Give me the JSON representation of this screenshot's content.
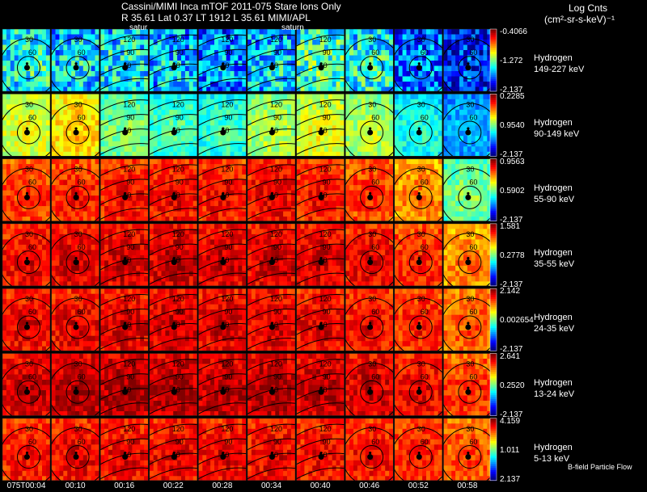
{
  "header": {
    "title": "Cassini/MIMI Inca mTOF  2011-075   Stare   Ions Only",
    "subtitle": "R        35.61  Lat 0.37 LT 1912 L         35.61   MIMI/APL",
    "log_label": "Log Cnts",
    "units": "(cm²-sr-s-keV)⁻¹",
    "saturn_labels": [
      "satur",
      "saturn"
    ]
  },
  "footer_note": "B-field Particle Flow",
  "chart_data": {
    "type": "heatmap",
    "title": "Cassini/MIMI Inca mTOF  2011-075   Stare   Ions Only",
    "time_ticks": [
      "075T00:04",
      "00:10",
      "00:16",
      "00:22",
      "00:28",
      "00:34",
      "00:40",
      "00:46",
      "00:52",
      "00:58"
    ],
    "contour_levels": [
      "30",
      "60",
      "90",
      "120",
      "150"
    ],
    "rows": [
      {
        "species": "Hydrogen",
        "energy": "149-227 keV",
        "cmax": "-0.4066",
        "cmid": "-1.272",
        "cmin": "-2.137",
        "intensity": [
          0.35,
          0.3,
          0.33,
          0.28,
          0.22,
          0.3,
          0.4,
          0.35,
          0.2,
          0.1
        ]
      },
      {
        "species": "Hydrogen",
        "energy": "90-149 keV",
        "cmax": "0.2285",
        "cmid": "0.9540",
        "cmin": "-2.137",
        "intensity": [
          0.55,
          0.62,
          0.45,
          0.4,
          0.38,
          0.5,
          0.55,
          0.5,
          0.35,
          0.25
        ]
      },
      {
        "species": "Hydrogen",
        "energy": "55-90 keV",
        "cmax": "0.9563",
        "cmid": "0.5902",
        "cmin": "-2.137",
        "intensity": [
          0.78,
          0.8,
          0.82,
          0.83,
          0.82,
          0.84,
          0.82,
          0.78,
          0.7,
          0.45
        ]
      },
      {
        "species": "Hydrogen",
        "energy": "35-55 keV",
        "cmax": "1.581",
        "cmid": "0.2778",
        "cmin": "-2.137",
        "intensity": [
          0.84,
          0.86,
          0.87,
          0.88,
          0.87,
          0.87,
          0.86,
          0.84,
          0.8,
          0.7
        ]
      },
      {
        "species": "Hydrogen",
        "energy": "24-35 keV",
        "cmax": "2.142",
        "cmid": "0.002654",
        "cmin": "-2.137",
        "intensity": [
          0.84,
          0.85,
          0.86,
          0.87,
          0.86,
          0.86,
          0.85,
          0.83,
          0.8,
          0.74
        ]
      },
      {
        "species": "Hydrogen",
        "energy": "13-24 keV",
        "cmax": "2.641",
        "cmid": "0.2520",
        "cmin": "-2.137",
        "intensity": [
          0.88,
          0.9,
          0.91,
          0.9,
          0.9,
          0.9,
          0.89,
          0.87,
          0.84,
          0.78
        ]
      },
      {
        "species": "Hydrogen",
        "energy": "5-13 keV",
        "cmax": "4.159",
        "cmid": "1.011",
        "cmin": "2.137",
        "intensity": [
          0.82,
          0.84,
          0.84,
          0.85,
          0.84,
          0.84,
          0.83,
          0.82,
          0.8,
          0.76
        ]
      }
    ]
  }
}
